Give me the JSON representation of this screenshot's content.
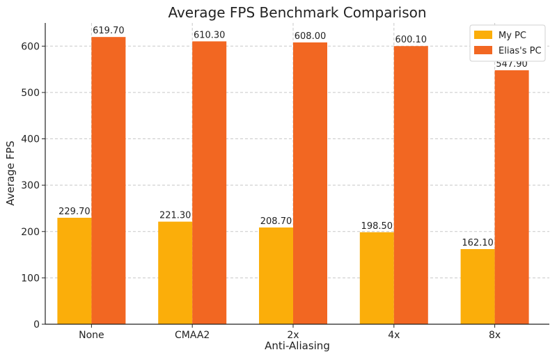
{
  "chart_data": {
    "type": "bar",
    "title": "Average FPS Benchmark Comparison",
    "xlabel": "Anti-Aliasing",
    "ylabel": "Average FPS",
    "categories": [
      "None",
      "CMAA2",
      "2x",
      "4x",
      "8x"
    ],
    "series": [
      {
        "name": "My PC",
        "color": "#FBAE0A",
        "values": [
          229.7,
          221.3,
          208.7,
          198.5,
          162.1
        ]
      },
      {
        "name": "Elias's PC",
        "color": "#F26722",
        "values": [
          619.7,
          610.3,
          608.0,
          600.1,
          547.9
        ]
      }
    ],
    "ylim": [
      0,
      650
    ],
    "yticks": [
      0,
      100,
      200,
      300,
      400,
      500,
      600
    ],
    "grid": true,
    "legend_position": "top-right",
    "value_format_decimals": 2
  }
}
